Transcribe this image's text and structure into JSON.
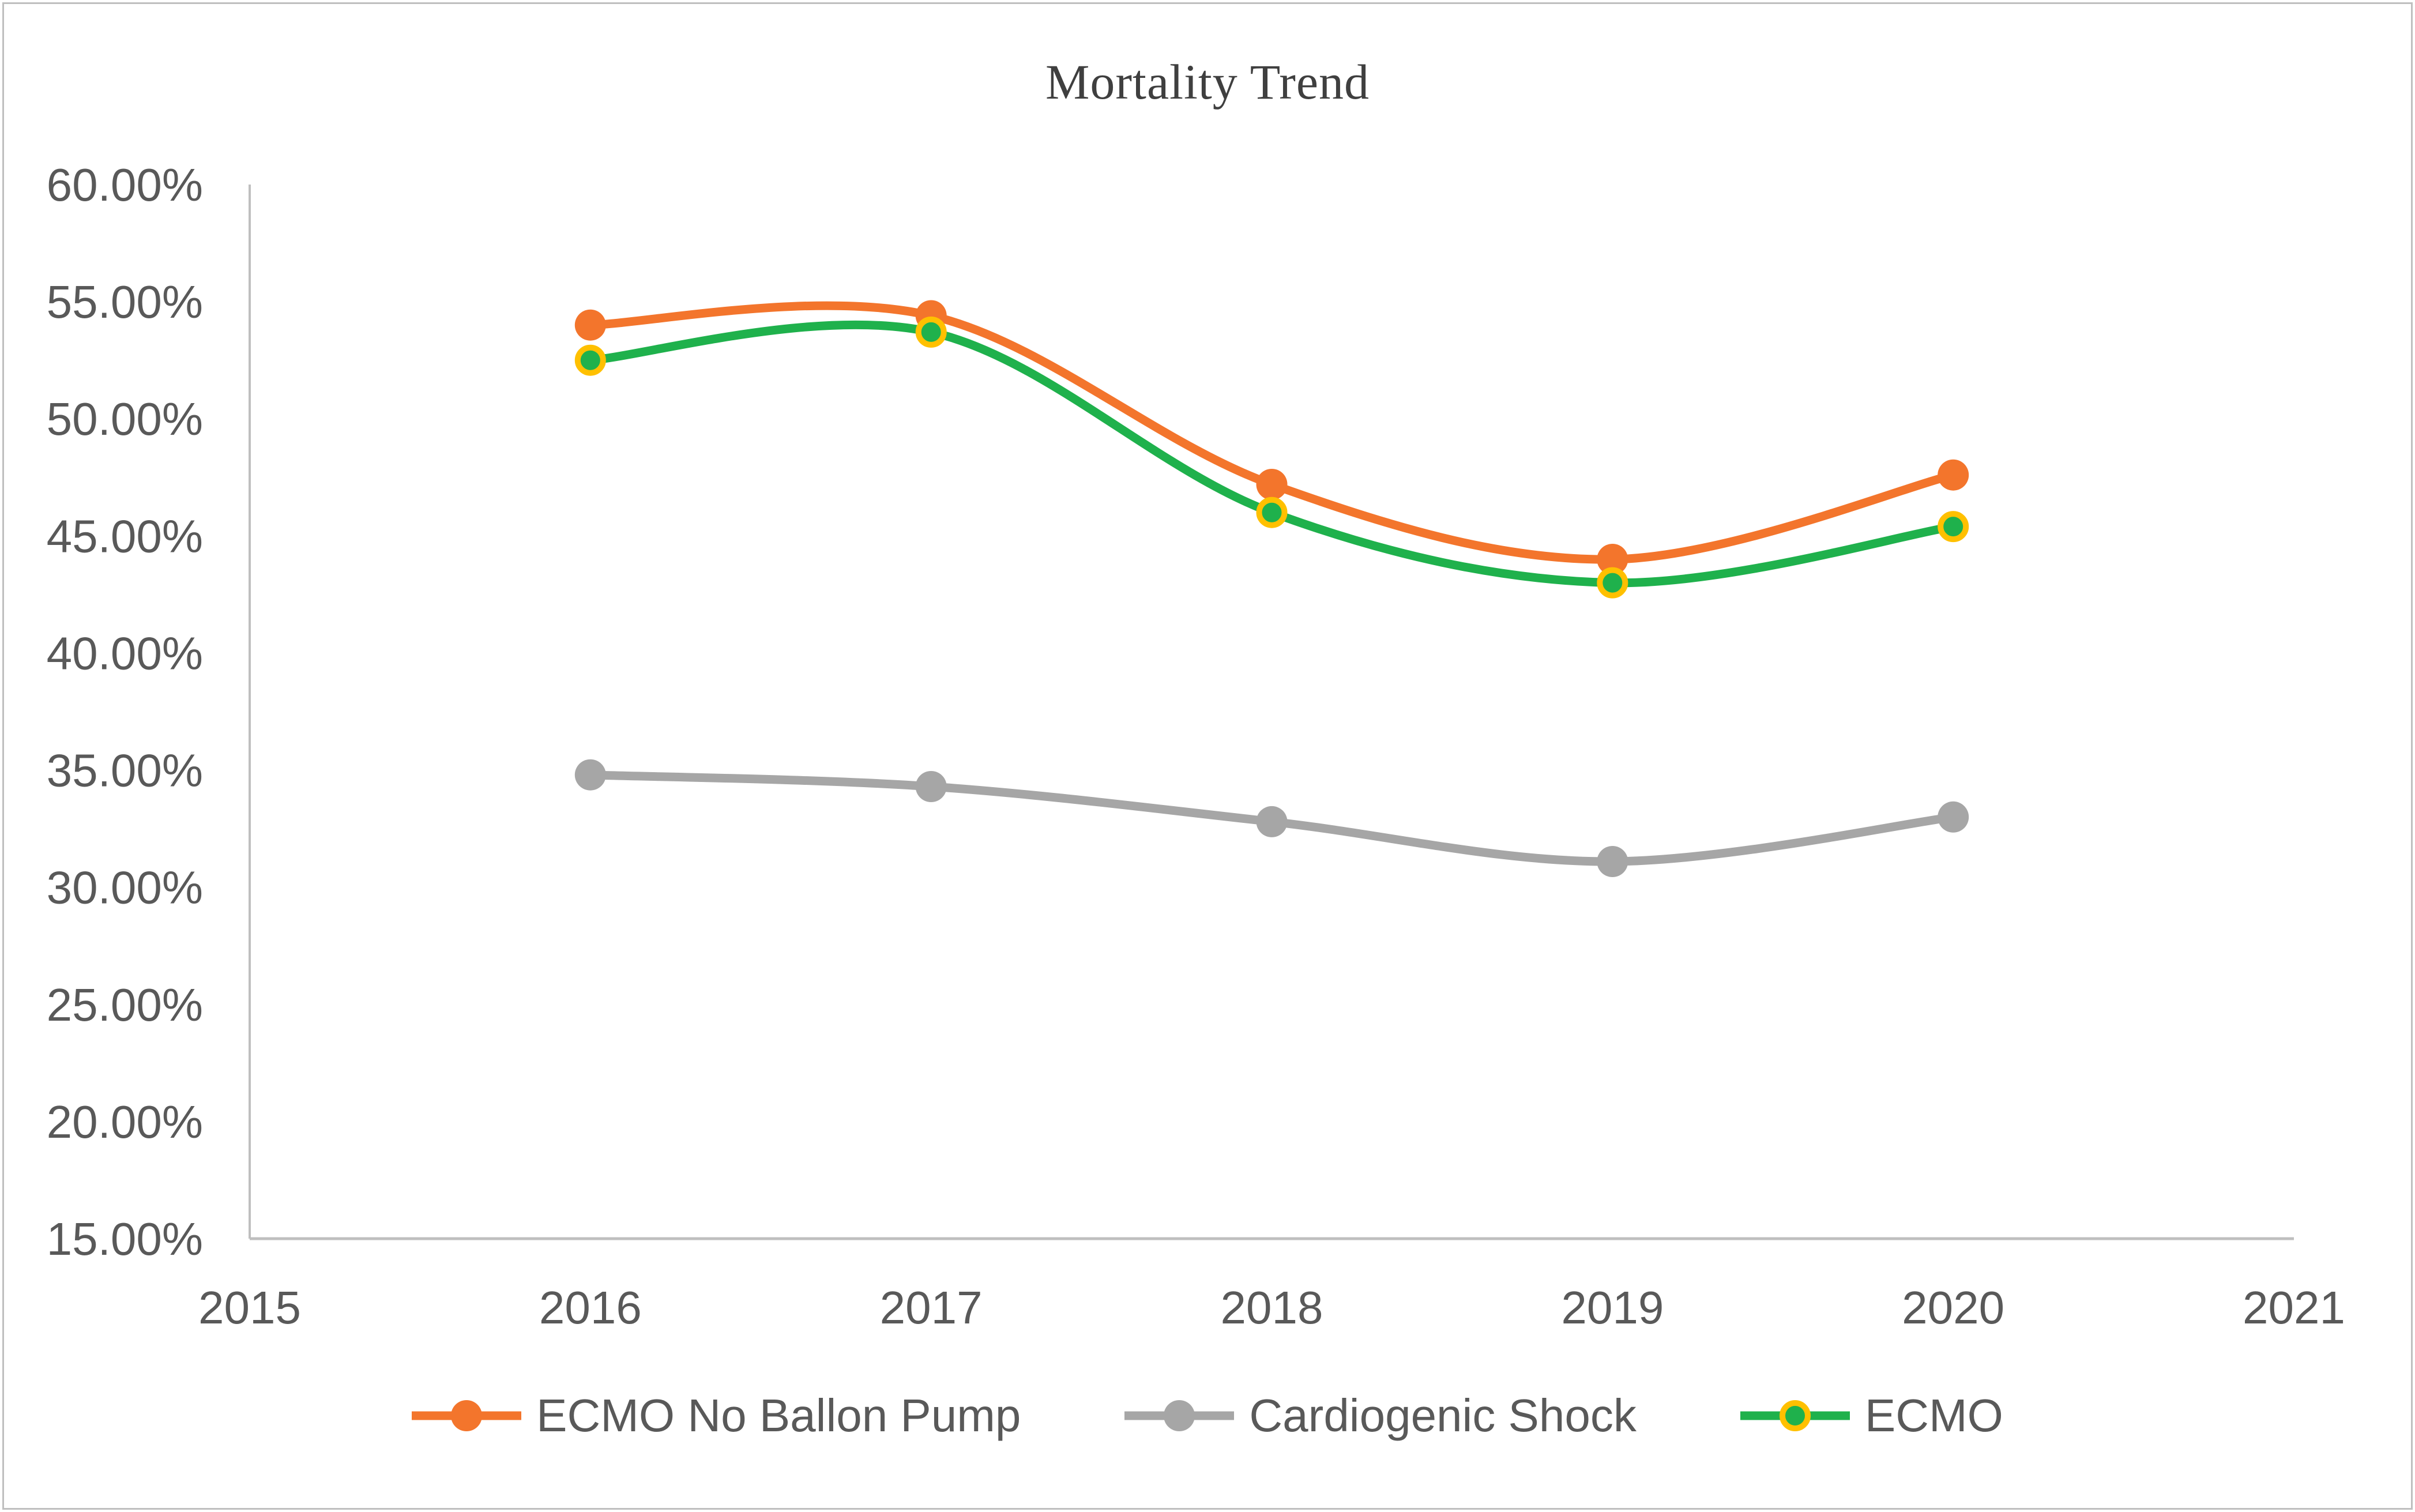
{
  "chart_data": {
    "type": "line",
    "title": "Mortality Trend",
    "x_categories": [
      "2015",
      "2016",
      "2017",
      "2018",
      "2019",
      "2020",
      "2021"
    ],
    "data_years": [
      2016,
      2017,
      2018,
      2019,
      2020
    ],
    "series": [
      {
        "name": "ECMO No Ballon Pump",
        "color": "#F3752C",
        "marker": "circle",
        "values": [
          54.0,
          54.4,
          47.2,
          44.0,
          47.6
        ]
      },
      {
        "name": "Cardiogenic Shock",
        "color": "#A6A6A6",
        "marker": "circle",
        "values": [
          34.8,
          34.3,
          32.8,
          31.1,
          33.0
        ]
      },
      {
        "name": "ECMO",
        "color": "#1FB14C",
        "marker": "circle-ringed",
        "marker_ring_color": "#FFC000",
        "values": [
          52.5,
          53.7,
          46.0,
          43.0,
          45.4
        ]
      }
    ],
    "ylim": [
      15,
      60
    ],
    "ytick_step": 5,
    "ytick_labels": [
      "15.00%",
      "20.00%",
      "25.00%",
      "30.00%",
      "35.00%",
      "40.00%",
      "45.00%",
      "50.00%",
      "55.00%",
      "60.00%"
    ],
    "xlabel": "",
    "ylabel": "",
    "grid": false,
    "line_style": "smooth",
    "legend_position": "bottom",
    "axis_color": "#BFBFBF",
    "tick_text_color": "#595959",
    "title_color": "#3F3F3F"
  }
}
